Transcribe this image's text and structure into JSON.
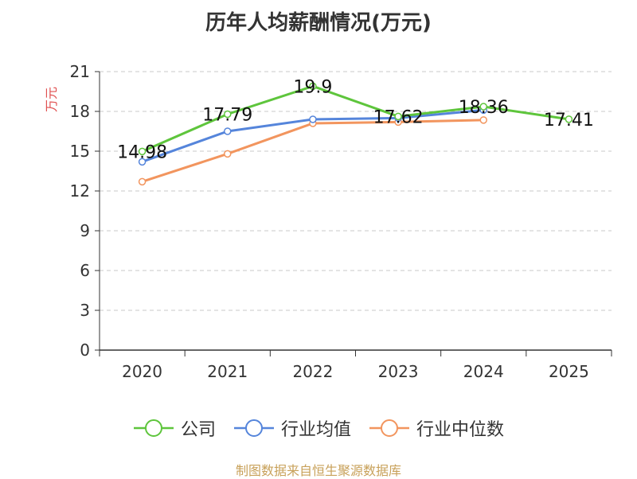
{
  "chart_data": {
    "type": "line",
    "title": "历年人均薪酬情况(万元)",
    "ylabel": "万元",
    "xlabel": "",
    "categories": [
      "2020",
      "2021",
      "2022",
      "2023",
      "2024",
      "2025"
    ],
    "ylim": [
      0,
      21
    ],
    "yticks": [
      0,
      3,
      6,
      9,
      12,
      15,
      18,
      21
    ],
    "grid": true,
    "legend_position": "bottom",
    "series": [
      {
        "name": "公司",
        "color": "#5ec53c",
        "values": [
          14.98,
          17.79,
          19.9,
          17.62,
          18.36,
          17.41
        ],
        "labels": [
          "14.98",
          "17.79",
          "19.9",
          "17.62",
          "18.36",
          "17.41"
        ]
      },
      {
        "name": "行业均值",
        "color": "#5585db",
        "values": [
          14.2,
          16.5,
          17.4,
          17.5,
          18.1,
          null
        ]
      },
      {
        "name": "行业中位数",
        "color": "#f2955e",
        "values": [
          12.7,
          14.8,
          17.1,
          17.2,
          17.35,
          null
        ]
      }
    ]
  },
  "source": "制图数据来自恒生聚源数据库"
}
